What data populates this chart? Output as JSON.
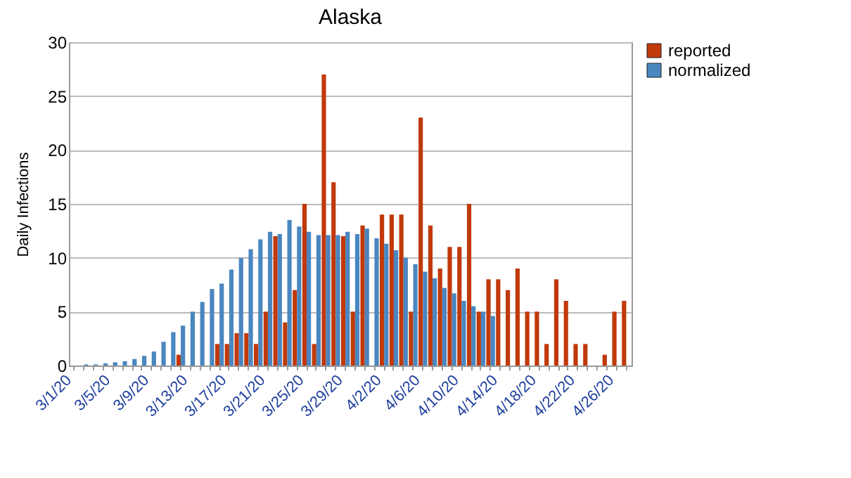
{
  "chart_data": {
    "type": "bar",
    "title": "Alaska",
    "ylabel": "Daily Infections",
    "categories": [
      "3/1/20",
      null,
      null,
      null,
      "3/5/20",
      null,
      null,
      null,
      "3/9/20",
      null,
      null,
      null,
      "3/13/20",
      null,
      null,
      null,
      "3/17/20",
      null,
      null,
      null,
      "3/21/20",
      null,
      null,
      null,
      "3/25/20",
      null,
      null,
      null,
      "3/29/20",
      null,
      null,
      null,
      "4/2/20",
      null,
      null,
      null,
      "4/6/20",
      null,
      null,
      null,
      "4/10/20",
      null,
      null,
      null,
      "4/14/20",
      null,
      null,
      null,
      "4/18/20",
      null,
      null,
      null,
      "4/22/20",
      null,
      null,
      null,
      "4/26/20",
      null
    ],
    "series": [
      {
        "name": "reported",
        "color": "#c0390b",
        "values": [
          0,
          0,
          0,
          0,
          0,
          0,
          0,
          0,
          0,
          0,
          0,
          1,
          0,
          0,
          0,
          2,
          2,
          3,
          3,
          2,
          5,
          12,
          4,
          7,
          15,
          2,
          27,
          17,
          12,
          5,
          13,
          0,
          14,
          14,
          14,
          5,
          23,
          13,
          9,
          11,
          11,
          15,
          5,
          8,
          8,
          7,
          9,
          5,
          5,
          2,
          8,
          6,
          2,
          2,
          0,
          1,
          5,
          6
        ]
      },
      {
        "name": "normalized",
        "color": "#4a86c0",
        "values": [
          0,
          0.1,
          0.1,
          0.2,
          0.3,
          0.4,
          0.6,
          0.9,
          1.3,
          2.2,
          3.1,
          3.7,
          5.0,
          5.9,
          7.1,
          7.6,
          8.9,
          10.0,
          10.8,
          11.7,
          12.4,
          12.2,
          13.5,
          12.9,
          12.4,
          12.1,
          12.1,
          12.1,
          12.4,
          12.2,
          12.7,
          11.8,
          11.3,
          10.7,
          10.0,
          9.4,
          8.7,
          8.1,
          7.2,
          6.7,
          6.0,
          5.5,
          5.0,
          4.6,
          null,
          null,
          null,
          null,
          null,
          null,
          null,
          null,
          null,
          null,
          null,
          null,
          null,
          null
        ]
      }
    ],
    "ylim": [
      0,
      30
    ],
    "yticks": [
      0,
      5,
      10,
      15,
      20,
      25,
      30
    ],
    "grid": "y",
    "legend": "right"
  }
}
